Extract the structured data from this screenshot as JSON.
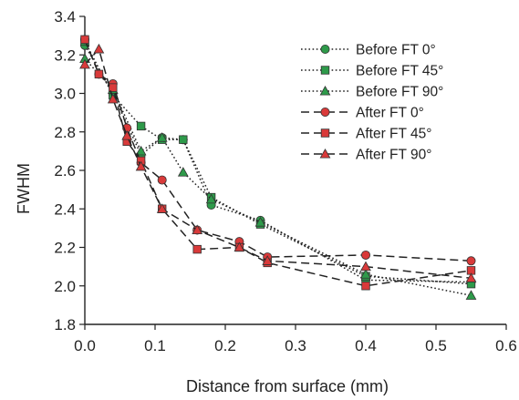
{
  "chart_data": {
    "type": "line",
    "title": "",
    "xlabel": "Distance from surface (mm)",
    "ylabel": "FWHM",
    "xlim": [
      0.0,
      0.6
    ],
    "ylim": [
      1.8,
      3.4
    ],
    "xticks": [
      "0.0",
      "0.1",
      "0.2",
      "0.3",
      "0.4",
      "0.5",
      "0.6"
    ],
    "yticks": [
      "1.8",
      "2.0",
      "2.2",
      "2.4",
      "2.6",
      "2.8",
      "3.0",
      "3.2",
      "3.4"
    ],
    "grid": false,
    "legend_position": "top-right",
    "colors": {
      "before": "#2e9a4a",
      "after": "#d93a3a"
    },
    "series": [
      {
        "name": "Before FT 0°",
        "group": "before",
        "line": "dotted",
        "marker": "circle",
        "x": [
          0.0,
          0.04,
          0.08,
          0.11,
          0.14,
          0.18,
          0.25,
          0.4,
          0.55
        ],
        "y": [
          3.25,
          3.0,
          2.68,
          2.77,
          2.76,
          2.42,
          2.34,
          2.03,
          2.02
        ]
      },
      {
        "name": "Before FT 45°",
        "group": "before",
        "line": "dotted",
        "marker": "square",
        "x": [
          0.0,
          0.04,
          0.08,
          0.11,
          0.14,
          0.18,
          0.25,
          0.4,
          0.55
        ],
        "y": [
          3.27,
          2.99,
          2.83,
          2.76,
          2.76,
          2.46,
          2.32,
          2.05,
          2.01
        ]
      },
      {
        "name": "Before FT 90°",
        "group": "before",
        "line": "dotted",
        "marker": "triangle",
        "x": [
          0.0,
          0.04,
          0.08,
          0.11,
          0.14,
          0.18,
          0.25,
          0.4,
          0.55
        ],
        "y": [
          3.18,
          3.02,
          2.7,
          2.77,
          2.59,
          2.45,
          2.33,
          2.06,
          1.95
        ]
      },
      {
        "name": "After FT 0°",
        "group": "after",
        "line": "dashed",
        "marker": "circle",
        "x": [
          0.0,
          0.02,
          0.04,
          0.06,
          0.08,
          0.11,
          0.16,
          0.22,
          0.26,
          0.4,
          0.55
        ],
        "y": [
          3.28,
          3.1,
          3.05,
          2.82,
          2.64,
          2.55,
          2.29,
          2.23,
          2.15,
          2.16,
          2.13
        ]
      },
      {
        "name": "After FT 45°",
        "group": "after",
        "line": "dashed",
        "marker": "square",
        "x": [
          0.0,
          0.02,
          0.04,
          0.06,
          0.08,
          0.11,
          0.16,
          0.22,
          0.26,
          0.4,
          0.55
        ],
        "y": [
          3.28,
          3.1,
          3.03,
          2.75,
          2.65,
          2.4,
          2.19,
          2.2,
          2.12,
          2.0,
          2.08
        ]
      },
      {
        "name": "After FT 90°",
        "group": "after",
        "line": "dashed",
        "marker": "triangle",
        "x": [
          0.0,
          0.02,
          0.04,
          0.06,
          0.08,
          0.11,
          0.16,
          0.22,
          0.26,
          0.4,
          0.55
        ],
        "y": [
          3.15,
          3.23,
          2.97,
          2.78,
          2.62,
          2.4,
          2.29,
          2.2,
          2.13,
          2.1,
          2.04
        ]
      }
    ]
  }
}
